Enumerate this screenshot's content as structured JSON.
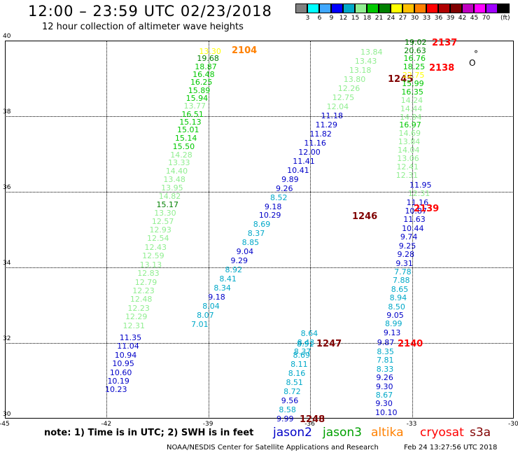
{
  "header": {
    "title": "12:00 – 23:59 UTC 02/23/2018",
    "subtitle": "12 hour collection of altimeter wave heights"
  },
  "legend": {
    "colors": [
      "#808080",
      "#00ffff",
      "#40a8ff",
      "#0000ff",
      "#00a8c8",
      "#90ee90",
      "#00c800",
      "#008000",
      "#ffff00",
      "#ffc000",
      "#ff8000",
      "#ff0000",
      "#b00000",
      "#800000",
      "#c000c0",
      "#ff00ff",
      "#a000ff",
      "#000000"
    ],
    "labels": [
      "3",
      "6",
      "9",
      "12",
      "15",
      "18",
      "21",
      "24",
      "27",
      "30",
      "33",
      "36",
      "39",
      "42",
      "45",
      "70"
    ],
    "unit": "(ft)"
  },
  "axes": {
    "lon_ticks": [
      "-45",
      "-42",
      "-39",
      "-36",
      "-33",
      "-30"
    ],
    "lat_ticks": [
      "40",
      "38",
      "36",
      "34",
      "32",
      "30"
    ]
  },
  "map_data": {
    "lon_range": [
      -45,
      -30
    ],
    "lat_range": [
      30,
      40
    ],
    "grid": true,
    "tracks": [
      {
        "satellite": "altika",
        "pass": "2104",
        "label_color": "#ff8000",
        "label_lat": 39.75,
        "points": [
          {
            "v": "13.30",
            "lat": 39.73,
            "c": "#ffff00"
          },
          {
            "v": "19.68",
            "lat": 39.53,
            "c": "#008000"
          },
          {
            "v": "18.87",
            "lat": 39.32,
            "c": "#00c800"
          },
          {
            "v": "16.48",
            "lat": 39.11,
            "c": "#00c800"
          },
          {
            "v": "16.25",
            "lat": 38.9,
            "c": "#00c800"
          },
          {
            "v": "15.89",
            "lat": 38.69,
            "c": "#00c800"
          },
          {
            "v": "15.94",
            "lat": 38.48,
            "c": "#00c800"
          },
          {
            "v": "13.77",
            "lat": 38.27,
            "c": "#90ee90"
          },
          {
            "v": "16.51",
            "lat": 38.06,
            "c": "#00c800"
          },
          {
            "v": "15.13",
            "lat": 37.85,
            "c": "#00c800"
          },
          {
            "v": "15.01",
            "lat": 37.64,
            "c": "#00c800"
          },
          {
            "v": "15.14",
            "lat": 37.43,
            "c": "#00c800"
          },
          {
            "v": "15.50",
            "lat": 37.21,
            "c": "#00c800"
          },
          {
            "v": "14.28",
            "lat": 36.99,
            "c": "#90ee90"
          },
          {
            "v": "13.33",
            "lat": 36.77,
            "c": "#90ee90"
          },
          {
            "v": "14.40",
            "lat": 36.55,
            "c": "#90ee90"
          },
          {
            "v": "13.48",
            "lat": 36.33,
            "c": "#90ee90"
          },
          {
            "v": "13.95",
            "lat": 36.11,
            "c": "#90ee90"
          },
          {
            "v": "14.82",
            "lat": 35.89,
            "c": "#90ee90"
          },
          {
            "v": "15.17",
            "lat": 35.67,
            "c": "#008000"
          },
          {
            "v": "13.30",
            "lat": 35.45,
            "c": "#90ee90"
          },
          {
            "v": "12.57",
            "lat": 35.23,
            "c": "#90ee90"
          },
          {
            "v": "12.93",
            "lat": 35.0,
            "c": "#90ee90"
          },
          {
            "v": "12.54",
            "lat": 34.77,
            "c": "#90ee90"
          },
          {
            "v": "12.43",
            "lat": 34.54,
            "c": "#90ee90"
          },
          {
            "v": "12.59",
            "lat": 34.31,
            "c": "#90ee90"
          },
          {
            "v": "13.13",
            "lat": 34.08,
            "c": "#90ee90"
          },
          {
            "v": "12.83",
            "lat": 33.85,
            "c": "#90ee90"
          },
          {
            "v": "12.79",
            "lat": 33.62,
            "c": "#90ee90"
          },
          {
            "v": "12.23",
            "lat": 33.39,
            "c": "#90ee90"
          },
          {
            "v": "12.48",
            "lat": 33.16,
            "c": "#90ee90"
          },
          {
            "v": "12.23",
            "lat": 32.93,
            "c": "#90ee90"
          },
          {
            "v": "12.29",
            "lat": 32.7,
            "c": "#90ee90"
          },
          {
            "v": "12.31",
            "lat": 32.47,
            "c": "#90ee90"
          },
          {
            "v": "11.35",
            "lat": 32.15,
            "c": "#0000c8"
          },
          {
            "v": "11.04",
            "lat": 31.92,
            "c": "#0000c8"
          },
          {
            "v": "10.94",
            "lat": 31.69,
            "c": "#0000c8"
          },
          {
            "v": "10.95",
            "lat": 31.46,
            "c": "#0000c8"
          },
          {
            "v": "10.60",
            "lat": 31.23,
            "c": "#0000c8"
          },
          {
            "v": "10.19",
            "lat": 31.0,
            "c": "#0000c8"
          },
          {
            "v": "10.23",
            "lat": 30.77,
            "c": "#0000c8"
          }
        ]
      },
      {
        "satellite": "jason3",
        "pass": "1245",
        "label_color": "#800000",
        "label_lat": 38.98,
        "points": [
          {
            "v": "13.84",
            "lat": 39.7,
            "c": "#90ee90"
          },
          {
            "v": "13.43",
            "lat": 39.46,
            "c": "#90ee90"
          },
          {
            "v": "13.18",
            "lat": 39.22,
            "c": "#90ee90"
          },
          {
            "v": "13.80",
            "lat": 38.98,
            "c": "#90ee90"
          },
          {
            "v": "12.26",
            "lat": 38.74,
            "c": "#90ee90"
          },
          {
            "v": "12.75",
            "lat": 38.5,
            "c": "#90ee90"
          },
          {
            "v": "12.04",
            "lat": 38.26,
            "c": "#90ee90"
          },
          {
            "v": "11.18",
            "lat": 38.02,
            "c": "#0000c8"
          },
          {
            "v": "11.29",
            "lat": 37.78,
            "c": "#0000c8"
          },
          {
            "v": "11.82",
            "lat": 37.54,
            "c": "#0000c8"
          },
          {
            "v": "11.16",
            "lat": 37.3,
            "c": "#0000c8"
          },
          {
            "v": "12.00",
            "lat": 37.06,
            "c": "#0000c8"
          },
          {
            "v": "11.41",
            "lat": 36.82,
            "c": "#0000c8"
          },
          {
            "v": "10.41",
            "lat": 36.58,
            "c": "#0000c8"
          },
          {
            "v": "9.89",
            "lat": 36.34,
            "c": "#0000c8"
          },
          {
            "v": "9.26",
            "lat": 36.1,
            "c": "#0000c8"
          },
          {
            "v": "8.52",
            "lat": 35.86,
            "c": "#00a8c8"
          },
          {
            "v": "9.18",
            "lat": 35.62,
            "c": "#0000c8"
          },
          {
            "v": "10.29",
            "lat": 35.38,
            "c": "#0000c8"
          },
          {
            "v": "8.69",
            "lat": 35.14,
            "c": "#00a8c8"
          },
          {
            "v": "8.37",
            "lat": 34.9,
            "c": "#00a8c8"
          },
          {
            "v": "8.85",
            "lat": 34.66,
            "c": "#00a8c8"
          },
          {
            "v": "9.04",
            "lat": 34.42,
            "c": "#0000c8"
          },
          {
            "v": "9.29",
            "lat": 34.18,
            "c": "#0000c8"
          },
          {
            "v": "8.92",
            "lat": 33.94,
            "c": "#00a8c8"
          },
          {
            "v": "8.41",
            "lat": 33.7,
            "c": "#00a8c8"
          },
          {
            "v": "8.34",
            "lat": 33.46,
            "c": "#00a8c8"
          },
          {
            "v": "9.18",
            "lat": 33.22,
            "c": "#0000c8"
          },
          {
            "v": "8.04",
            "lat": 32.98,
            "c": "#00a8c8"
          },
          {
            "v": "8.07",
            "lat": 32.74,
            "c": "#00a8c8"
          },
          {
            "v": "7.01",
            "lat": 32.5,
            "c": "#00a8c8"
          }
        ]
      },
      {
        "satellite": "jason3",
        "pass": "1246",
        "label_color": "#800000",
        "label_lat": 35.35,
        "points": []
      },
      {
        "satellite": "jason3",
        "pass": "1247",
        "label_color": "#800000",
        "label_lat": 31.98,
        "points": [
          {
            "v": "8.64",
            "lat": 32.26,
            "c": "#00a8c8"
          },
          {
            "v": "8.43",
            "lat": 32.02,
            "c": "#00a8c8"
          },
          {
            "v": "8.37",
            "lat": 31.78,
            "c": "#00a8c8"
          },
          {
            "v": "8.91",
            "lat": 31.98,
            "c": "#00a8c8"
          },
          {
            "v": "8.69",
            "lat": 31.68,
            "c": "#00a8c8"
          },
          {
            "v": "8.11",
            "lat": 31.44,
            "c": "#00a8c8"
          },
          {
            "v": "8.16",
            "lat": 31.2,
            "c": "#00a8c8"
          },
          {
            "v": "8.51",
            "lat": 30.96,
            "c": "#00a8c8"
          },
          {
            "v": "8.72",
            "lat": 30.72,
            "c": "#00a8c8"
          },
          {
            "v": "9.56",
            "lat": 30.48,
            "c": "#0000c8"
          },
          {
            "v": "8.58",
            "lat": 30.24,
            "c": "#00a8c8"
          },
          {
            "v": "9.99",
            "lat": 30.0,
            "c": "#0000c8"
          }
        ]
      },
      {
        "satellite": "jason3",
        "pass": "1248",
        "label_color": "#800000",
        "label_lat": 29.99,
        "points": []
      },
      {
        "satellite": "cryosat",
        "pass": "2137",
        "label_color": "#ff0000",
        "label_lat": 39.95,
        "points": [
          {
            "v": "19.02",
            "lat": 39.97,
            "c": "#008000"
          },
          {
            "v": "20.63",
            "lat": 39.75,
            "c": "#008000"
          },
          {
            "v": "16.76",
            "lat": 39.53,
            "c": "#00c800"
          },
          {
            "v": "18.25",
            "lat": 39.31,
            "c": "#00c800"
          },
          {
            "v": "22.75",
            "lat": 39.09,
            "c": "#ffff00"
          },
          {
            "v": "15.99",
            "lat": 38.87,
            "c": "#00c800"
          },
          {
            "v": "16.35",
            "lat": 38.65,
            "c": "#00c800"
          },
          {
            "v": "14.24",
            "lat": 38.43,
            "c": "#90ee90"
          },
          {
            "v": "14.44",
            "lat": 38.21,
            "c": "#90ee90"
          },
          {
            "v": "14.94",
            "lat": 37.99,
            "c": "#90ee90"
          },
          {
            "v": "16.97",
            "lat": 37.77,
            "c": "#00c800"
          },
          {
            "v": "14.69",
            "lat": 37.55,
            "c": "#90ee90"
          },
          {
            "v": "13.84",
            "lat": 37.33,
            "c": "#90ee90"
          },
          {
            "v": "14.04",
            "lat": 37.11,
            "c": "#90ee90"
          },
          {
            "v": "13.06",
            "lat": 36.89,
            "c": "#90ee90"
          },
          {
            "v": "12.41",
            "lat": 36.67,
            "c": "#90ee90"
          },
          {
            "v": "12.31",
            "lat": 36.45,
            "c": "#90ee90"
          }
        ]
      },
      {
        "satellite": "cryosat",
        "pass": "2138",
        "label_color": "#ff0000",
        "label_lat": 39.28,
        "points": []
      },
      {
        "satellite": "cryosat",
        "pass": "2139",
        "label_color": "#ff0000",
        "label_lat": 35.55,
        "points": [
          {
            "v": "11.95",
            "lat": 36.19,
            "c": "#0000c8"
          },
          {
            "v": "12.31",
            "lat": 35.96,
            "c": "#90ee90"
          },
          {
            "v": "11.16",
            "lat": 35.73,
            "c": "#0000c8"
          },
          {
            "v": "10.87",
            "lat": 35.5,
            "c": "#0000c8"
          },
          {
            "v": "11.63",
            "lat": 35.27,
            "c": "#0000c8"
          },
          {
            "v": "10.44",
            "lat": 35.04,
            "c": "#0000c8"
          },
          {
            "v": "9.74",
            "lat": 34.81,
            "c": "#0000c8"
          },
          {
            "v": "9.25",
            "lat": 34.58,
            "c": "#0000c8"
          },
          {
            "v": "9.28",
            "lat": 34.35,
            "c": "#0000c8"
          },
          {
            "v": "9.31",
            "lat": 34.12,
            "c": "#0000c8"
          },
          {
            "v": "7.78",
            "lat": 33.89,
            "c": "#00a8c8"
          },
          {
            "v": "7.88",
            "lat": 33.66,
            "c": "#00a8c8"
          },
          {
            "v": "8.65",
            "lat": 33.43,
            "c": "#00a8c8"
          },
          {
            "v": "8.94",
            "lat": 33.2,
            "c": "#00a8c8"
          },
          {
            "v": "8.50",
            "lat": 32.97,
            "c": "#00a8c8"
          },
          {
            "v": "9.05",
            "lat": 32.74,
            "c": "#0000c8"
          },
          {
            "v": "8.99",
            "lat": 32.51,
            "c": "#00a8c8"
          },
          {
            "v": "9.13",
            "lat": 32.28,
            "c": "#0000c8"
          }
        ]
      },
      {
        "satellite": "cryosat",
        "pass": "2140",
        "label_color": "#ff0000",
        "label_lat": 31.98,
        "points": [
          {
            "v": "9.87",
            "lat": 32.01,
            "c": "#0000c8"
          },
          {
            "v": "8.35",
            "lat": 31.78,
            "c": "#00a8c8"
          },
          {
            "v": "7.81",
            "lat": 31.55,
            "c": "#00a8c8"
          },
          {
            "v": "8.33",
            "lat": 31.32,
            "c": "#00a8c8"
          },
          {
            "v": "9.26",
            "lat": 31.09,
            "c": "#0000c8"
          },
          {
            "v": "9.30",
            "lat": 30.86,
            "c": "#0000c8"
          },
          {
            "v": "8.67",
            "lat": 30.63,
            "c": "#00a8c8"
          },
          {
            "v": "9.30",
            "lat": 30.4,
            "c": "#0000c8"
          },
          {
            "v": "10.10",
            "lat": 30.17,
            "c": "#0000c8"
          }
        ]
      }
    ]
  },
  "note": "note:  1) Time is in UTC; 2) SWH is in feet",
  "satellites": [
    {
      "name": "jason2",
      "color": "#0000c8"
    },
    {
      "name": "jason3",
      "color": "#00a000"
    },
    {
      "name": "altika",
      "color": "#ff8000"
    },
    {
      "name": "cryosat",
      "color": "#ff0000"
    },
    {
      "name": "s3a",
      "color": "#800000"
    }
  ],
  "footer": {
    "center": "NOAA/NESDIS Center for Satellite Applications and Research",
    "timestamp": "Feb 24 13:27:56 UTC 2018"
  }
}
